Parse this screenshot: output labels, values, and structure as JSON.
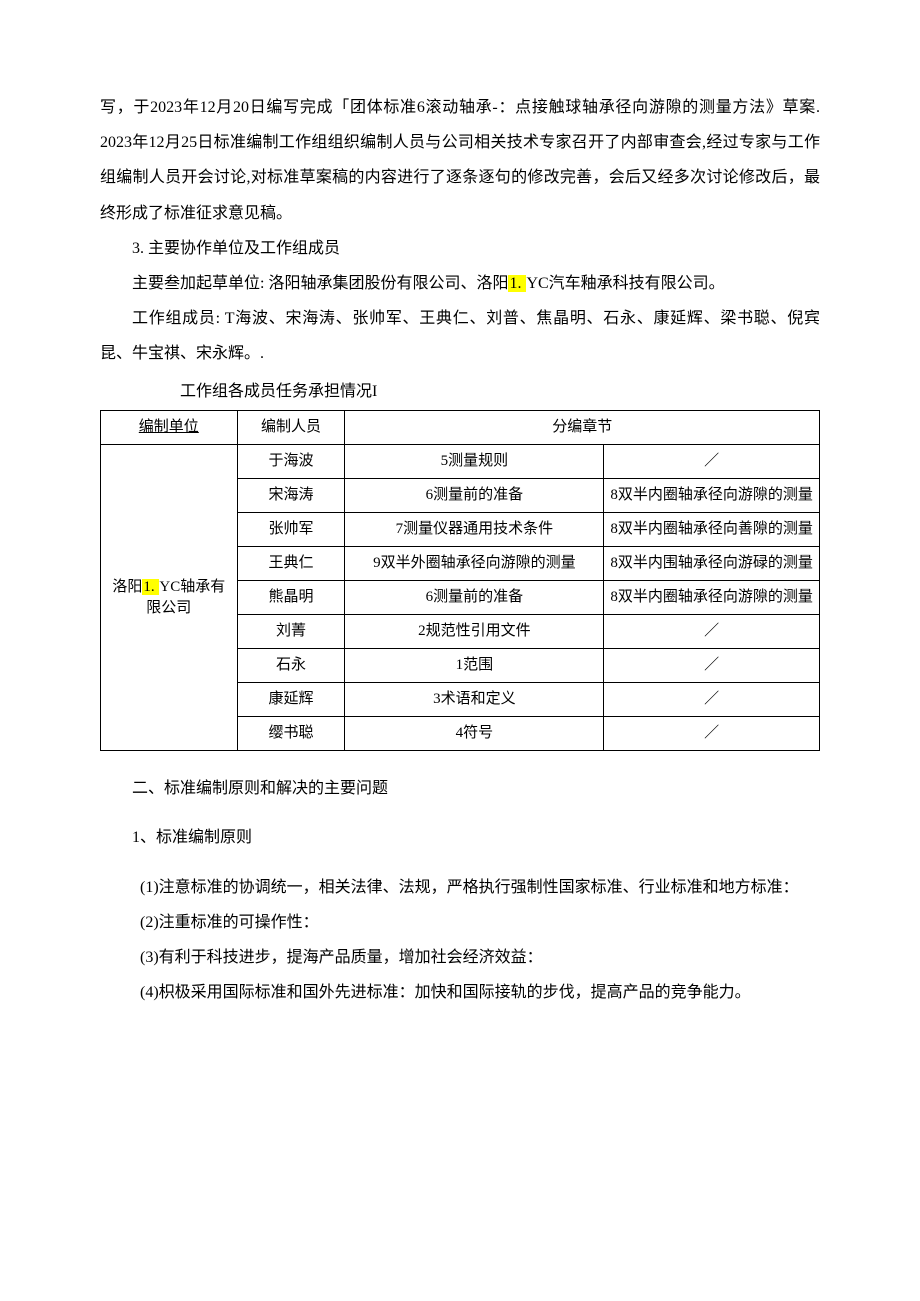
{
  "colors": {
    "background": "#ffffff",
    "text": "#000000",
    "highlight": "#ffff00",
    "border": "#000000"
  },
  "typography": {
    "body_fontsize": 16,
    "table_fontsize": 15,
    "line_height": 2.2
  },
  "p1_a": "写，于2023年12月20日编写完成「团体标准6滚动轴承-：点接触球轴承径向游隙的测量方法》草案. 2023年12月25日标准编制工作组组织编制人员与公司相关技术专家召开了内部审查会,经过专家与工作组编制人员开会讨论,对标准草案稿的内容进行了逐条逐句的修改完善，会后又经多次讨论修改后，最终形成了标准征求意见稿。",
  "p2": "3. 主要协作单位及工作组成员",
  "p3_a": "主要叁加起草单位: 洛阳轴承集团股份有限公司、洛阳",
  "p3_mark": "1. ",
  "p3_b": "YC汽车釉承科技有限公司。",
  "p4": "工作组成员: T海波、宋海涛、张帅军、王典仁、刘普、焦晶明、石永、康延辉、梁书聪、倪宾昆、牛宝祺、宋永辉。.",
  "table": {
    "caption": "工作组各成员任务承担情况I",
    "columns": [
      "编制单位",
      "编制人员",
      "分编章节"
    ],
    "unit_a": "洛阳",
    "unit_mark": "1. ",
    "unit_b": "YC轴承有限公司",
    "rows": [
      {
        "person": "于海波",
        "c1": "5测量规则",
        "c2": "／"
      },
      {
        "person": "宋海涛",
        "c1": "6测量前的准备",
        "c2": "8双半内圈轴承径向游隙的测量"
      },
      {
        "person": "张帅军",
        "c1": "7测量仪器通用技术条件",
        "c2": "8双半内圈轴承径向善隙的测量"
      },
      {
        "person": "王典仁",
        "c1": "9双半外圈轴承径向游隙的测量",
        "c2": "8双半内围轴承径向游碌的测量"
      },
      {
        "person": "熊晶明",
        "c1": "6测量前的准备",
        "c2": "8双半内圈轴承径向游隙的测量"
      },
      {
        "person": "刘菁",
        "c1": "2规范性引用文件",
        "c2": "／"
      },
      {
        "person": "石永",
        "c1": "1范围",
        "c2": "／"
      },
      {
        "person": "康延辉",
        "c1": "3术语和定义",
        "c2": "／"
      },
      {
        "person": "缨书聪",
        "c1": "4符号",
        "c2": "／"
      }
    ]
  },
  "s2_title": "二、标准编制原则和解决的主要问题",
  "s2_sub1": "1、标准编制原则",
  "s2_p1": "(1)注意标准的协调统一，相关法律、法规，严格执行强制性国家标准、行业标准和地方标准：",
  "s2_p2": "(2)注重标准的可操作性：",
  "s2_p3": "(3)有利于科技进步，提海产品质量，增加社会经济效益：",
  "s2_p4": "(4)枳极采用国际标准和国外先进标准：加快和国际接轨的步伐，提高产品的竞争能力。"
}
